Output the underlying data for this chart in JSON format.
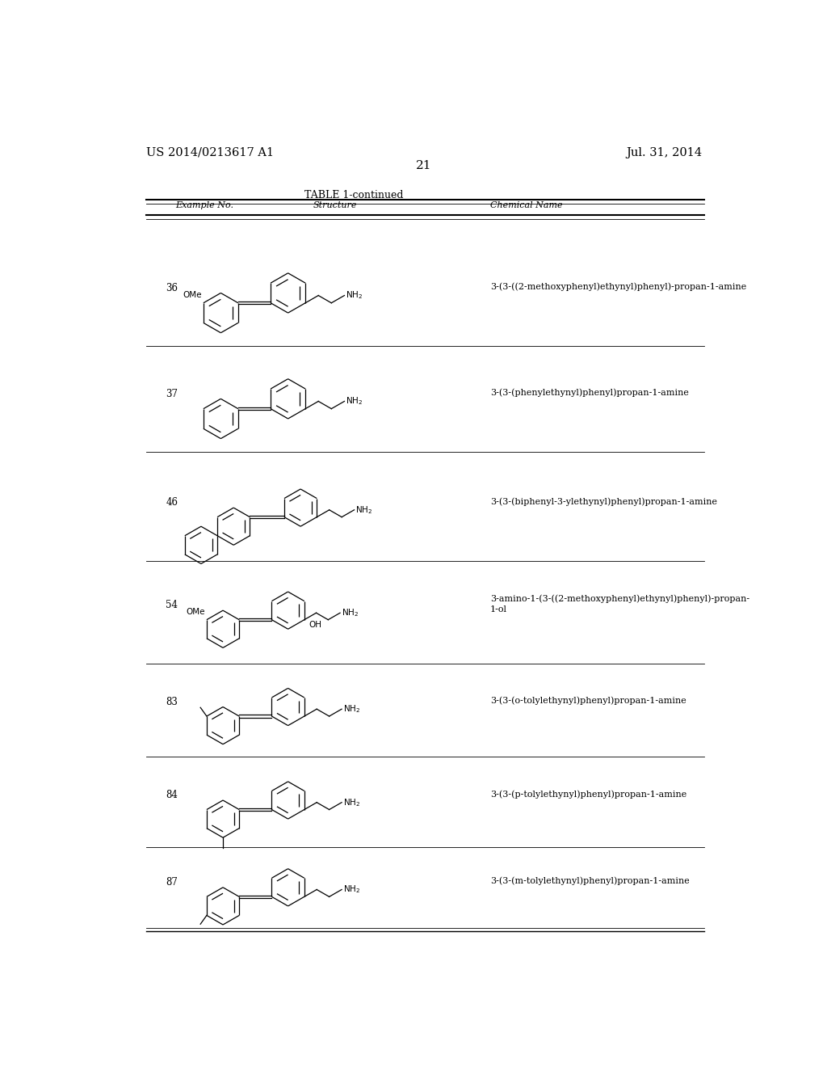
{
  "page_number": "21",
  "patent_number": "US 2014/0213617 A1",
  "patent_date": "Jul. 31, 2014",
  "table_title": "TABLE 1-continued",
  "table_headers": [
    "Example No.",
    "Structure",
    "Chemical Name"
  ],
  "background_color": "#ffffff",
  "text_color": "#000000",
  "row_numbers": [
    "36",
    "37",
    "46",
    "54",
    "83",
    "84",
    "87"
  ],
  "chemical_names": [
    "3-(3-((2-methoxyphenyl)ethynyl)phenyl)-propan-1-amine",
    "3-(3-(phenylethynyl)phenyl)propan-1-amine",
    "3-(3-(biphenyl-3-ylethynyl)phenyl)propan-1-amine",
    "3-amino-1-(3-((2-methoxyphenyl)ethynyl)phenyl)-propan-\n1-ol",
    "3-(3-(o-tolylethynyl)phenyl)propan-1-amine",
    "3-(3-(p-tolylethynyl)phenyl)propan-1-amine",
    "3-(3-(m-tolylethynyl)phenyl)propan-1-amine"
  ],
  "row_y_centers": [
    1055,
    885,
    710,
    545,
    390,
    240,
    100
  ],
  "row_dividers": [
    970,
    800,
    625,
    460,
    310,
    165,
    35
  ]
}
